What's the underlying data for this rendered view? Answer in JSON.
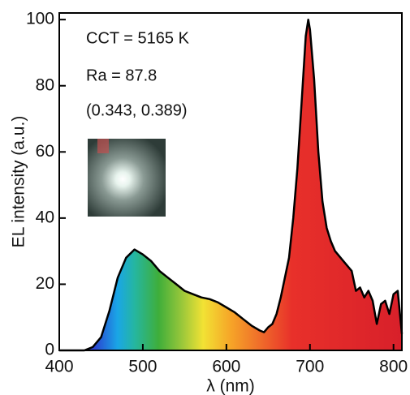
{
  "chart_data": {
    "type": "area",
    "xlabel": "λ (nm)",
    "ylabel": "EL intensity (a.u.)",
    "annotations": [
      "CCT = 5165 K",
      "Ra = 87.8",
      "(0.343, 0.389)"
    ],
    "x": [
      400,
      430,
      440,
      450,
      460,
      470,
      480,
      490,
      500,
      510,
      520,
      530,
      540,
      550,
      560,
      570,
      580,
      590,
      600,
      610,
      620,
      630,
      640,
      645,
      650,
      655,
      660,
      665,
      670,
      675,
      680,
      685,
      690,
      695,
      698,
      700,
      705,
      710,
      715,
      720,
      725,
      730,
      740,
      750,
      755,
      760,
      765,
      770,
      775,
      780,
      785,
      790,
      795,
      800,
      805,
      810
    ],
    "values": [
      0,
      0,
      1,
      4,
      12,
      22,
      28,
      30.5,
      29,
      27,
      24,
      22,
      20,
      18,
      17,
      16,
      15.5,
      14.5,
      13,
      11.5,
      9.5,
      7.5,
      6,
      5.5,
      7,
      8,
      11,
      16,
      22,
      28,
      40,
      55,
      75,
      95,
      100,
      97,
      82,
      60,
      45,
      37,
      33,
      30,
      27,
      24,
      18,
      19,
      16,
      18,
      15,
      8,
      14,
      15,
      11,
      17,
      18,
      5
    ],
    "line_color": "#000000",
    "xlim": [
      400,
      810
    ],
    "ylim": [
      0,
      102
    ],
    "xticks": [
      400,
      500,
      600,
      700,
      800
    ],
    "yticks": [
      0,
      20,
      40,
      60,
      80,
      100
    ]
  }
}
